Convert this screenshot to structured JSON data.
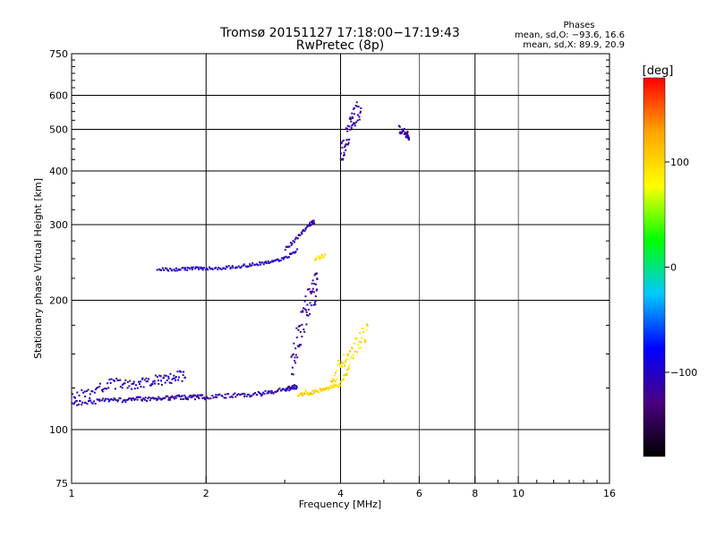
{
  "chart_data": {
    "type": "scatter",
    "title": "Tromsø 20151127 17:18:00−17:19:43",
    "subtitle": "RwPretec (8p)",
    "xlabel": "Frequency [MHz]",
    "ylabel": "Stationary phase Virtual Height [km]",
    "x_scale": "log2",
    "y_scale": "log",
    "xlim": [
      1,
      16
    ],
    "ylim": [
      75,
      750
    ],
    "x_ticks": [
      1,
      2,
      4,
      6,
      8,
      10,
      16
    ],
    "x_tick_labels": [
      "1",
      "2",
      "4",
      "6",
      "8",
      "10",
      "16"
    ],
    "x_grid_major": [
      1,
      2,
      4,
      8,
      16
    ],
    "x_grid_minor": [
      6,
      10
    ],
    "x_minor_ticks": [
      3,
      5,
      7,
      9,
      11,
      12,
      13,
      14,
      15
    ],
    "y_ticks": [
      75,
      100,
      200,
      300,
      400,
      500,
      600,
      750
    ],
    "y_tick_labels": [
      "75",
      "100",
      "200",
      "300",
      "400",
      "500",
      "600",
      "750"
    ],
    "y_minor_ticks": [
      125,
      150,
      175,
      225,
      250,
      275,
      325,
      350,
      375,
      425,
      450,
      475,
      525,
      550,
      575,
      625,
      650,
      675,
      700,
      725
    ],
    "grid": true,
    "phase_stats": {
      "title": "Phases",
      "o_line": "mean, sd,O: −93.6, 16.6",
      "x_line": "mean, sd,X:  89.9, 20.9"
    },
    "colorbar": {
      "label": "[deg]",
      "range": [
        -180,
        180
      ],
      "ticks": [
        -100,
        0,
        100
      ],
      "tick_labels": [
        "−100",
        "0",
        "100"
      ],
      "colors": [
        "#000000",
        "#4b0082",
        "#0000ff",
        "#00c8ff",
        "#00ff00",
        "#ffff00",
        "#ffa500",
        "#ff0000"
      ]
    },
    "series": [
      {
        "traces": [
          {
            "x": [
              1.0,
              1.1,
              1.2,
              1.3,
              1.4,
              1.5,
              1.6,
              1.7,
              1.8,
              1.9,
              2.0,
              2.2,
              2.4,
              2.6,
              2.8,
              3.0,
              3.1,
              3.2
            ],
            "y": [
              115,
              116,
              117,
              117,
              118,
              118,
              118,
              119,
              119,
              119,
              119,
              120,
              120,
              121,
              122,
              124,
              125,
              126
            ],
            "phase": -110,
            "spread": 0.012
          },
          {
            "x": [
              1.0,
              1.1,
              1.2,
              1.3,
              1.4,
              1.5,
              1.6,
              1.7,
              1.8
            ],
            "y": [
              118,
              122,
              127,
              128,
              128,
              129,
              131,
              132,
              134
            ],
            "phase": -105,
            "spread": 0.03
          },
          {
            "x": [
              1.55,
              1.7,
              1.85,
              2.0,
              2.2,
              2.4,
              2.6,
              2.8,
              3.0,
              3.2
            ],
            "y": [
              236,
              236,
              237,
              237,
              238,
              240,
              243,
              246,
              250,
              262
            ],
            "phase": -100,
            "spread": 0.008
          },
          {
            "x": [
              3.0,
              3.2,
              3.4,
              3.5
            ],
            "y": [
              262,
              280,
              300,
              305
            ],
            "phase": -110,
            "spread": 0.01
          },
          {
            "x": [
              3.1,
              3.2,
              3.3,
              3.4,
              3.5,
              3.55
            ],
            "y": [
              140,
              160,
              180,
              200,
              210,
              220
            ],
            "phase": -115,
            "spread": 0.09
          },
          {
            "x": [
              4.0,
              4.1,
              4.2,
              4.3,
              4.45
            ],
            "y": [
              430,
              470,
              500,
              540,
              560
            ],
            "phase": -110,
            "spread": 0.06
          },
          {
            "x": [
              5.4,
              5.6,
              5.7
            ],
            "y": [
              500,
              490,
              480
            ],
            "phase": -115,
            "spread": 0.02
          }
        ]
      },
      {
        "traces": [
          {
            "x": [
              3.2,
              3.4,
              3.6,
              3.8,
              4.0,
              4.2
            ],
            "y": [
              121,
              122,
              123,
              125,
              128,
              140
            ],
            "phase": 100,
            "spread": 0.012
          },
          {
            "x": [
              3.8,
              4.0,
              4.2,
              4.4,
              4.6
            ],
            "y": [
              130,
              140,
              150,
              160,
              170
            ],
            "phase": 95,
            "spread": 0.05
          },
          {
            "x": [
              3.5,
              3.7
            ],
            "y": [
              250,
              255
            ],
            "phase": 95,
            "spread": 0.01
          }
        ]
      }
    ]
  }
}
